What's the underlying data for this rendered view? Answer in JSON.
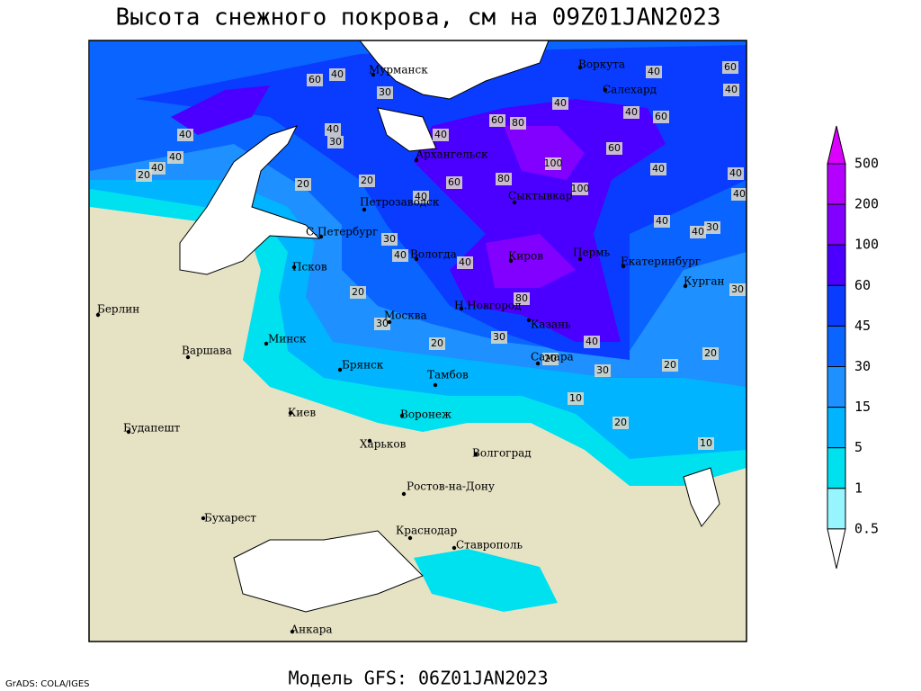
{
  "header": {
    "title": "Высота снежного покрова, см на 09Z01JAN2023"
  },
  "footer": {
    "model": "Модель GFS: 06Z01JAN2023",
    "credit": "GrADS: COLA/IGES"
  },
  "legend": {
    "labels": [
      "500",
      "200",
      "100",
      "60",
      "45",
      "30",
      "15",
      "5",
      "1",
      "0.5"
    ],
    "colors": [
      "#dc00ff",
      "#b400ff",
      "#8200ff",
      "#4b00ff",
      "#0a3cff",
      "#0a64ff",
      "#1e90ff",
      "#00b4ff",
      "#00e1f0",
      "#96f5ff",
      "#ffffff"
    ]
  },
  "cities": [
    "Мурманск",
    "Воркута",
    "Салехард",
    "Архангельск",
    "Петрозаводск",
    "Сыктывкар",
    "С.Петербург",
    "Вологда",
    "Киров",
    "Пермь",
    "Екатеринбург",
    "Курган",
    "Псков",
    "Н.Новгород",
    "Казань",
    "Москва",
    "Берлин",
    "Минск",
    "Варшава",
    "Брянск",
    "Тамбов",
    "Самара",
    "Воронеж",
    "Киев",
    "Харьков",
    "Волгоград",
    "Будапешт",
    "Ростов-на-Дону",
    "Бухарест",
    "Краснодар",
    "Ставрополь",
    "Анкара"
  ],
  "contour_labels": [
    60,
    40,
    30,
    20,
    20,
    40,
    30,
    40,
    40,
    40,
    20,
    40,
    60,
    80,
    40,
    100,
    80,
    60,
    40,
    100,
    60,
    40,
    40,
    40,
    30,
    60,
    40,
    60,
    40,
    40,
    40,
    40,
    40,
    40,
    20,
    30,
    20,
    30,
    40,
    20,
    30,
    20,
    20,
    10,
    20,
    10,
    30,
    80,
    30
  ]
}
